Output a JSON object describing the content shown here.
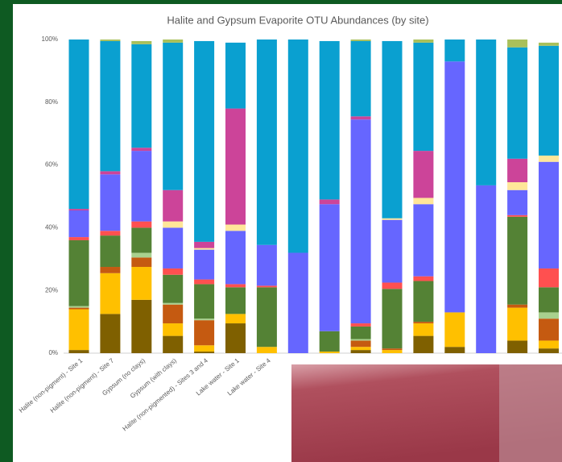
{
  "chart_data": {
    "type": "stacked_bar",
    "title": "Halite and Gypsum Evaporite OTU Abundances (by site)",
    "categories": [
      "Halite (non-pigment) - Site 1",
      "Halite (non-pigment) - Site 7",
      "Gypsum (no clays)",
      "Gypsum (with clays)",
      "Halite (non-pigmented) - Sites 3 and 4",
      "Lake water - Site 1",
      "Lake water - Site 4",
      null,
      null,
      null,
      null,
      null,
      null,
      null,
      null,
      null
    ],
    "ylim": [
      0,
      100
    ],
    "yticks": [
      {
        "value": 0,
        "label": "0%"
      },
      {
        "value": 20,
        "label": "20%"
      },
      {
        "value": 40,
        "label": "40%"
      },
      {
        "value": 60,
        "label": "60%"
      },
      {
        "value": 80,
        "label": "80%"
      },
      {
        "value": 100,
        "label": "100%"
      }
    ],
    "grid": false,
    "series": [
      {
        "color": "#7f6000",
        "values": [
          1,
          12.5,
          17,
          5.5,
          0.5,
          9.5,
          0,
          0,
          0,
          1,
          0,
          5.5,
          2,
          0,
          4,
          1.5
        ]
      },
      {
        "color": "#ffc000",
        "values": [
          13,
          13,
          10.5,
          4,
          2,
          3,
          2,
          0,
          0.5,
          1,
          1,
          4,
          11,
          0,
          10.5,
          2.5
        ]
      },
      {
        "color": "#c55a11",
        "values": [
          0.5,
          2,
          3,
          6,
          8,
          0,
          0,
          0,
          0,
          2,
          0.5,
          0.5,
          0,
          0,
          1,
          7
        ]
      },
      {
        "color": "#a9d18e",
        "values": [
          0.5,
          0,
          1.5,
          0.5,
          0.5,
          0,
          0,
          0,
          0,
          0.5,
          0,
          0,
          0,
          0,
          0,
          2
        ]
      },
      {
        "color": "#548235",
        "values": [
          21,
          10,
          8,
          9,
          11,
          8.5,
          19,
          0,
          6.5,
          4,
          19,
          13,
          0,
          0,
          28,
          8
        ]
      },
      {
        "color": "#ff5050",
        "values": [
          1,
          1.5,
          2,
          2,
          1.5,
          1,
          0.5,
          0,
          0,
          1,
          2,
          1.5,
          0,
          0,
          0.5,
          6
        ]
      },
      {
        "color": "#6666ff",
        "values": [
          8.5,
          18,
          22.5,
          13,
          9.5,
          17,
          13,
          32,
          40.5,
          65,
          20,
          23,
          80,
          53.5,
          8,
          34
        ]
      },
      {
        "color": "#ffe699",
        "values": [
          0,
          0,
          0,
          2,
          0.5,
          2,
          0,
          0,
          0,
          0,
          0.5,
          2,
          0,
          0,
          2.5,
          2
        ]
      },
      {
        "color": "#cc4499",
        "values": [
          0.5,
          1,
          1,
          10,
          2,
          37,
          0,
          0,
          1.5,
          1,
          0,
          15,
          0,
          0,
          7.5,
          0
        ]
      },
      {
        "color": "#0aa0d0",
        "values": [
          54,
          41.5,
          33,
          47,
          64,
          21,
          65.5,
          68,
          50.5,
          24,
          56.5,
          34.5,
          7,
          46.5,
          35.5,
          35
        ]
      },
      {
        "color": "#a9c05a",
        "values": [
          0,
          0.5,
          1,
          1,
          0,
          0,
          0,
          0,
          0,
          0.5,
          0,
          1,
          0,
          0,
          2.5,
          1
        ]
      }
    ]
  }
}
